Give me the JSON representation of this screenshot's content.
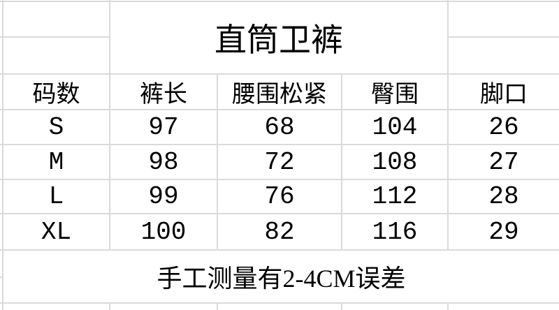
{
  "title": "直筒卫裤",
  "headers": [
    "码数",
    "裤长",
    "腰围松紧",
    "臀围",
    "脚口"
  ],
  "rows": [
    [
      "S",
      "97",
      "68",
      "104",
      "26"
    ],
    [
      "M",
      "98",
      "72",
      "108",
      "27"
    ],
    [
      "L",
      "99",
      "76",
      "112",
      "28"
    ],
    [
      "XL",
      "100",
      "82",
      "116",
      "29"
    ]
  ],
  "note": "手工测量有2-4CM误差",
  "colors": {
    "gridline": "#dadada",
    "text": "#000000",
    "background": "#ffffff"
  }
}
